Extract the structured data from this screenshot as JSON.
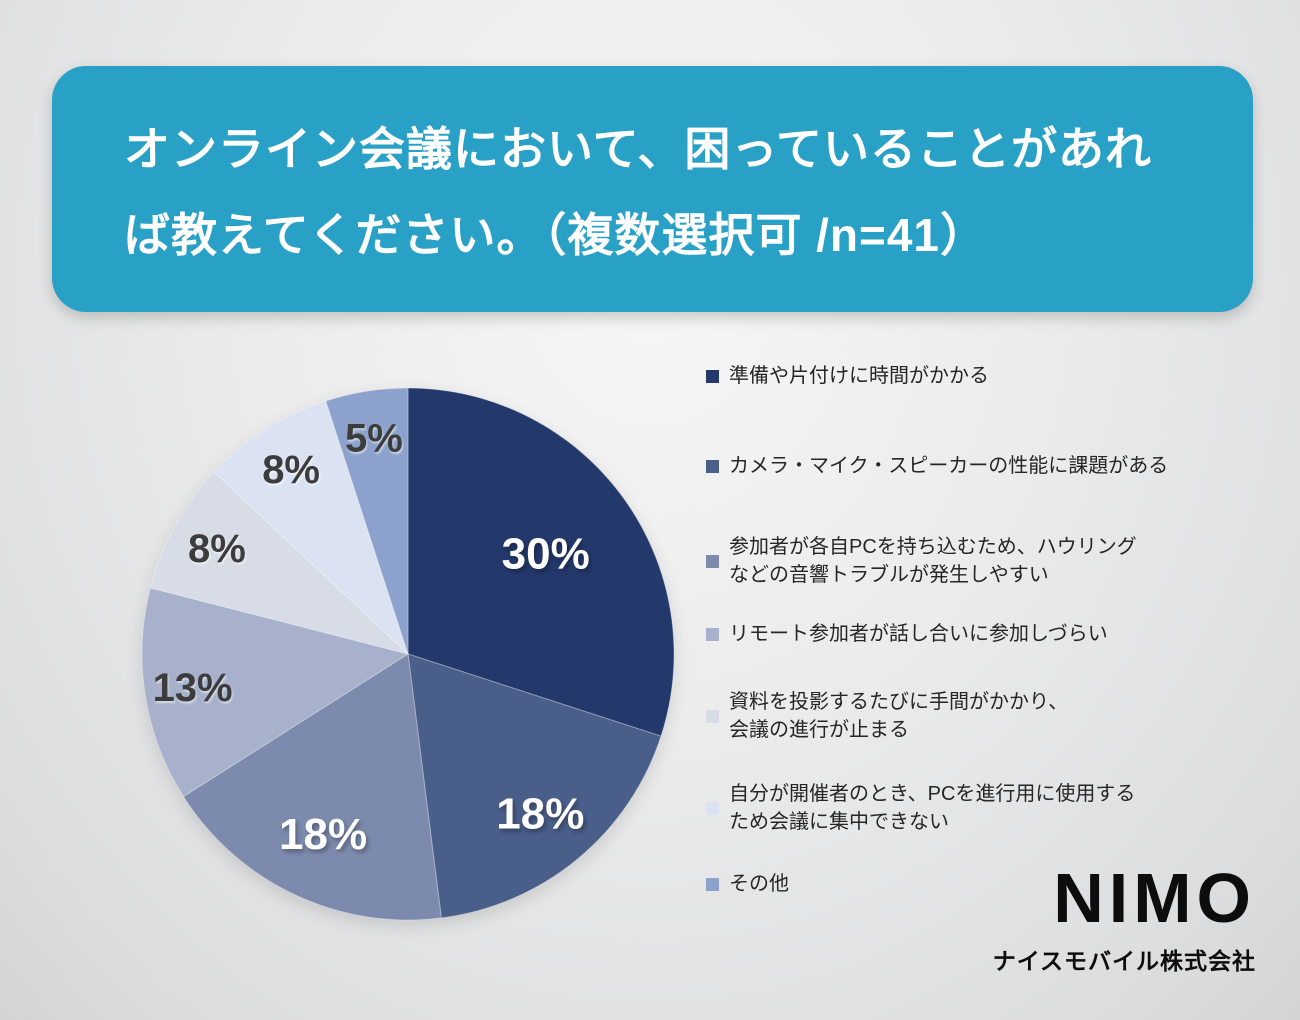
{
  "header": {
    "title_line1": "オンライン会議において、困っていることがあれ",
    "title_line2": "ば教えてください。（複数選択可 /n=41）",
    "background": "#29A0C5",
    "text_color": "#FFFFFF"
  },
  "chart_data": {
    "type": "pie",
    "title": "オンライン会議において、困っていることがあれば教えてください。（複数選択可 /n=41）",
    "n": 41,
    "unit": "%",
    "start_angle_deg": 0,
    "direction": "clockwise",
    "legend_position": "right",
    "slices": [
      {
        "label": "準備や片付けに時間がかかる",
        "value": 30,
        "data_label": "30%",
        "color": "#24396B",
        "label_color": "#FFFFFF"
      },
      {
        "label": "カメラ・マイク・スピーカーの性能に課題がある",
        "value": 18,
        "data_label": "18%",
        "color": "#4A5E8A",
        "label_color": "#FFFFFF"
      },
      {
        "label": "参加者が各自PCを持ち込むため、ハウリング\nなどの音響トラブルが発生しやすい",
        "value": 18,
        "data_label": "18%",
        "color": "#7C8AAD",
        "label_color": "#FFFFFF"
      },
      {
        "label": "リモート参加者が話し合いに参加しづらい",
        "value": 13,
        "data_label": "13%",
        "color": "#A7B1CB",
        "label_color": "#3C3C3C"
      },
      {
        "label": "資料を投影するたびに手間がかかり、\n会議の進行が止まる",
        "value": 8,
        "data_label": "8%",
        "color": "#D8DCE6",
        "label_color": "#3C3C3C"
      },
      {
        "label": "自分が開催者のとき、PCを進行用に使用する\nため会議に集中できない",
        "value": 8,
        "data_label": "8%",
        "color": "#DBE3F3",
        "label_color": "#3C3C3C"
      },
      {
        "label": "その他",
        "value": 5,
        "data_label": "5%",
        "color": "#8CA2CC",
        "label_color": "#3C3C3C"
      }
    ]
  },
  "footer": {
    "logo_text": "NIMO",
    "company_name": "ナイスモバイル株式会社"
  }
}
